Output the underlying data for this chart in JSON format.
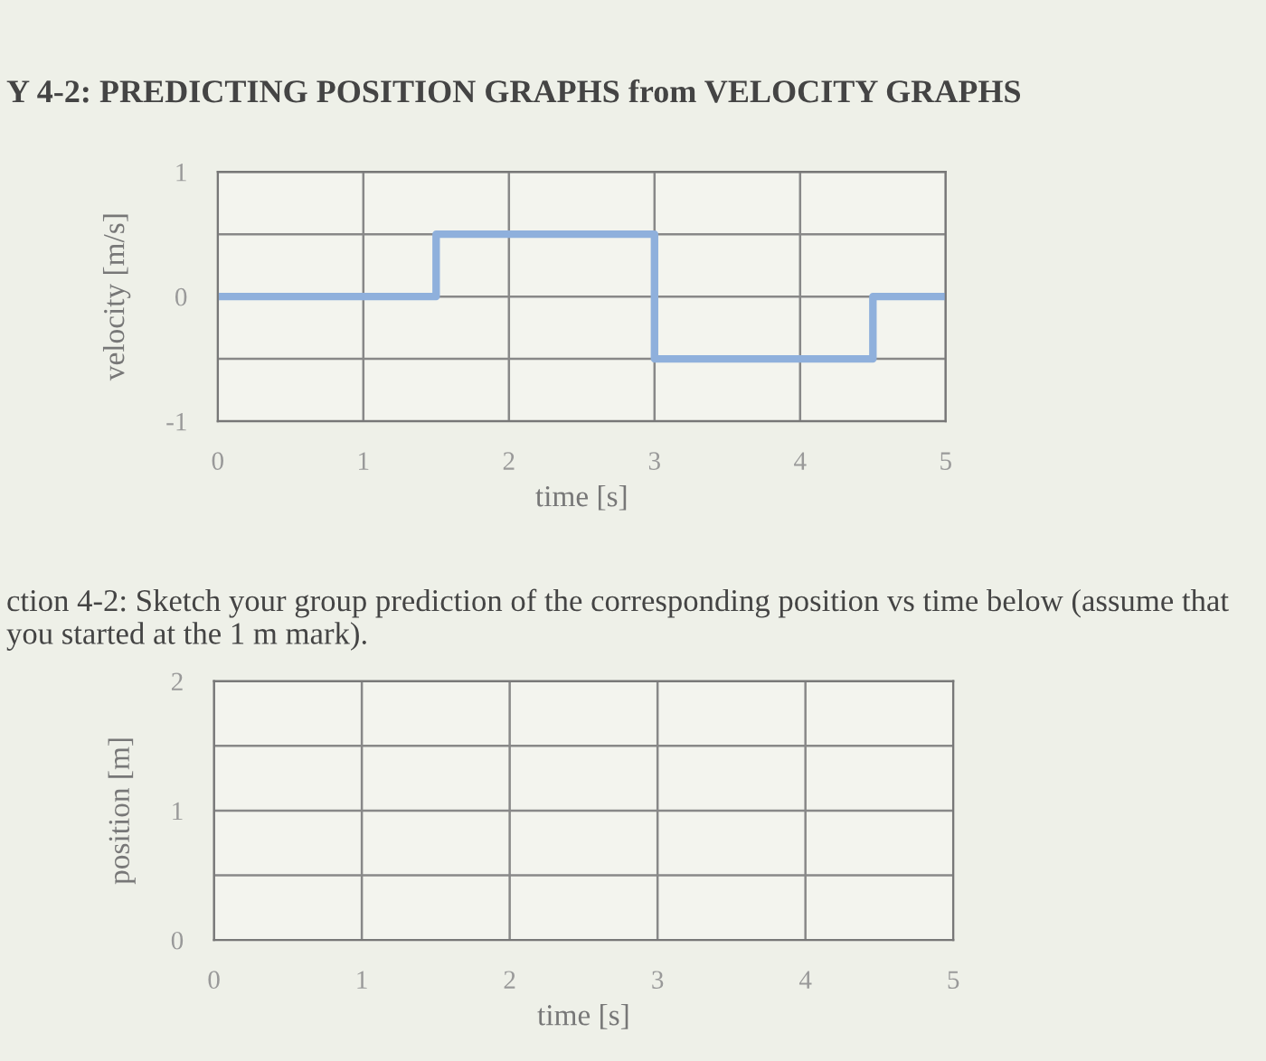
{
  "chart_data": [
    {
      "type": "step",
      "title": "Y 4-2: PREDICTING POSITION GRAPHS from VELOCITY GRAPHS",
      "xlabel": "time [s]",
      "ylabel": "velocity [m/s]",
      "x": [
        0,
        1.5,
        3,
        4.5,
        5
      ],
      "series": [
        {
          "color": "#8fb0dc",
          "values": [
            0,
            0.5,
            -0.5,
            0,
            0
          ]
        }
      ],
      "xlim": [
        0,
        5
      ],
      "xticks": [
        0,
        1,
        2,
        3,
        4,
        5
      ],
      "ylim": [
        -1,
        1
      ],
      "yticks": [
        -1,
        {
          "value": -0.5,
          "label": null
        },
        0,
        {
          "value": 0.5,
          "label": null
        },
        1
      ],
      "grid": true
    },
    {
      "type": "line",
      "title": "ction 4-2: Sketch your group prediction of the corresponding position vs time below (assume that you started at the 1 m mark).",
      "xlabel": "time [s]",
      "ylabel": "position [m]",
      "xlim": [
        0,
        5
      ],
      "xticks": [
        0,
        1,
        2,
        3,
        4,
        5
      ],
      "ylim": [
        0,
        2
      ],
      "yticks": [
        0,
        {
          "value": 0.5,
          "label": null
        },
        1,
        {
          "value": 1.5,
          "label": null
        },
        2
      ],
      "grid": true
    }
  ]
}
